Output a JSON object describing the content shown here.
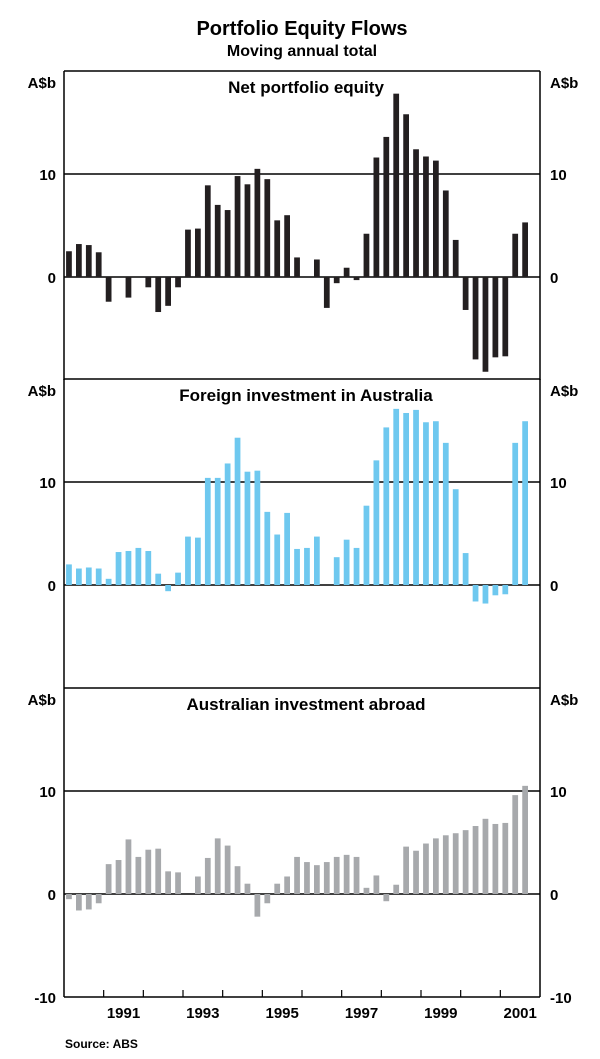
{
  "chart_data": {
    "type": "bar",
    "title": "Portfolio Equity Flows",
    "subtitle": "Moving annual total",
    "unit_label": "A$b",
    "source": "Source: ABS",
    "x_tick_labels": [
      "1991",
      "1993",
      "1995",
      "1997",
      "1999",
      "2001"
    ],
    "quarters": [
      "1989Q4",
      "1990Q1",
      "1990Q2",
      "1990Q3",
      "1990Q4",
      "1991Q1",
      "1991Q2",
      "1991Q3",
      "1991Q4",
      "1992Q1",
      "1992Q2",
      "1992Q3",
      "1992Q4",
      "1993Q1",
      "1993Q2",
      "1993Q3",
      "1993Q4",
      "1994Q1",
      "1994Q2",
      "1994Q3",
      "1994Q4",
      "1995Q1",
      "1995Q2",
      "1995Q3",
      "1995Q4",
      "1996Q1",
      "1996Q2",
      "1996Q3",
      "1996Q4",
      "1997Q1",
      "1997Q2",
      "1997Q3",
      "1997Q4",
      "1998Q1",
      "1998Q2",
      "1998Q3",
      "1998Q4",
      "1999Q1",
      "1999Q2",
      "1999Q3",
      "1999Q4",
      "2000Q1",
      "2000Q2",
      "2000Q3",
      "2000Q4",
      "2001Q1",
      "2001Q2",
      "2001Q3"
    ],
    "panels": [
      {
        "title": "Net portfolio equity",
        "color": "#231f20",
        "ylim": [
          -10,
          20
        ],
        "left_ticks": [
          "A$b",
          "10",
          "0"
        ],
        "right_ticks": [
          "A$b",
          "10",
          "0"
        ],
        "values": [
          2.5,
          3.2,
          3.1,
          2.4,
          -2.4,
          null,
          -2.0,
          null,
          -1.0,
          -3.4,
          -2.8,
          -1.0,
          4.6,
          4.7,
          8.9,
          7.0,
          6.5,
          9.8,
          9.0,
          10.5,
          9.5,
          5.5,
          6.0,
          1.9,
          null,
          1.7,
          -3.0,
          -0.6,
          0.9,
          -0.3,
          4.2,
          11.6,
          13.6,
          17.8,
          15.8,
          12.4,
          11.7,
          11.3,
          8.4,
          3.6,
          -3.2,
          -8.0,
          -9.2,
          -7.8,
          -7.7,
          4.2,
          5.3,
          null
        ]
      },
      {
        "title": "Foreign investment in Australia",
        "color": "#6ec8ef",
        "ylim": [
          -10,
          20
        ],
        "left_ticks": [
          "A$b",
          "10",
          "0"
        ],
        "right_ticks": [
          "A$b",
          "10",
          "0"
        ],
        "values": [
          2.0,
          1.6,
          1.7,
          1.6,
          0.6,
          3.2,
          3.3,
          3.6,
          3.3,
          1.1,
          -0.6,
          1.2,
          4.7,
          4.6,
          10.4,
          10.4,
          11.8,
          14.3,
          11.0,
          11.1,
          7.1,
          4.9,
          7.0,
          3.5,
          3.6,
          4.7,
          null,
          2.7,
          4.4,
          3.6,
          7.7,
          12.1,
          15.3,
          17.1,
          16.7,
          17.0,
          15.8,
          15.9,
          13.8,
          9.3,
          3.1,
          -1.6,
          -1.8,
          -1.0,
          -0.9,
          13.8,
          15.9,
          null
        ]
      },
      {
        "title": "Australian investment abroad",
        "color": "#a7a9ac",
        "ylim": [
          -10,
          20
        ],
        "left_ticks": [
          "A$b",
          "10",
          "0",
          "-10"
        ],
        "right_ticks": [
          "A$b",
          "10",
          "0",
          "-10"
        ],
        "values": [
          -0.5,
          -1.6,
          -1.5,
          -0.9,
          2.9,
          3.3,
          5.3,
          3.6,
          4.3,
          4.4,
          2.2,
          2.1,
          null,
          1.7,
          3.5,
          5.4,
          4.7,
          2.7,
          1.0,
          -2.2,
          -0.9,
          1.0,
          1.7,
          3.6,
          3.1,
          2.8,
          3.1,
          3.6,
          3.8,
          3.6,
          0.6,
          1.8,
          -0.7,
          0.9,
          4.6,
          4.2,
          4.9,
          5.4,
          5.7,
          5.9,
          6.2,
          6.6,
          7.3,
          6.8,
          6.9,
          9.6,
          10.5,
          null
        ]
      }
    ]
  }
}
